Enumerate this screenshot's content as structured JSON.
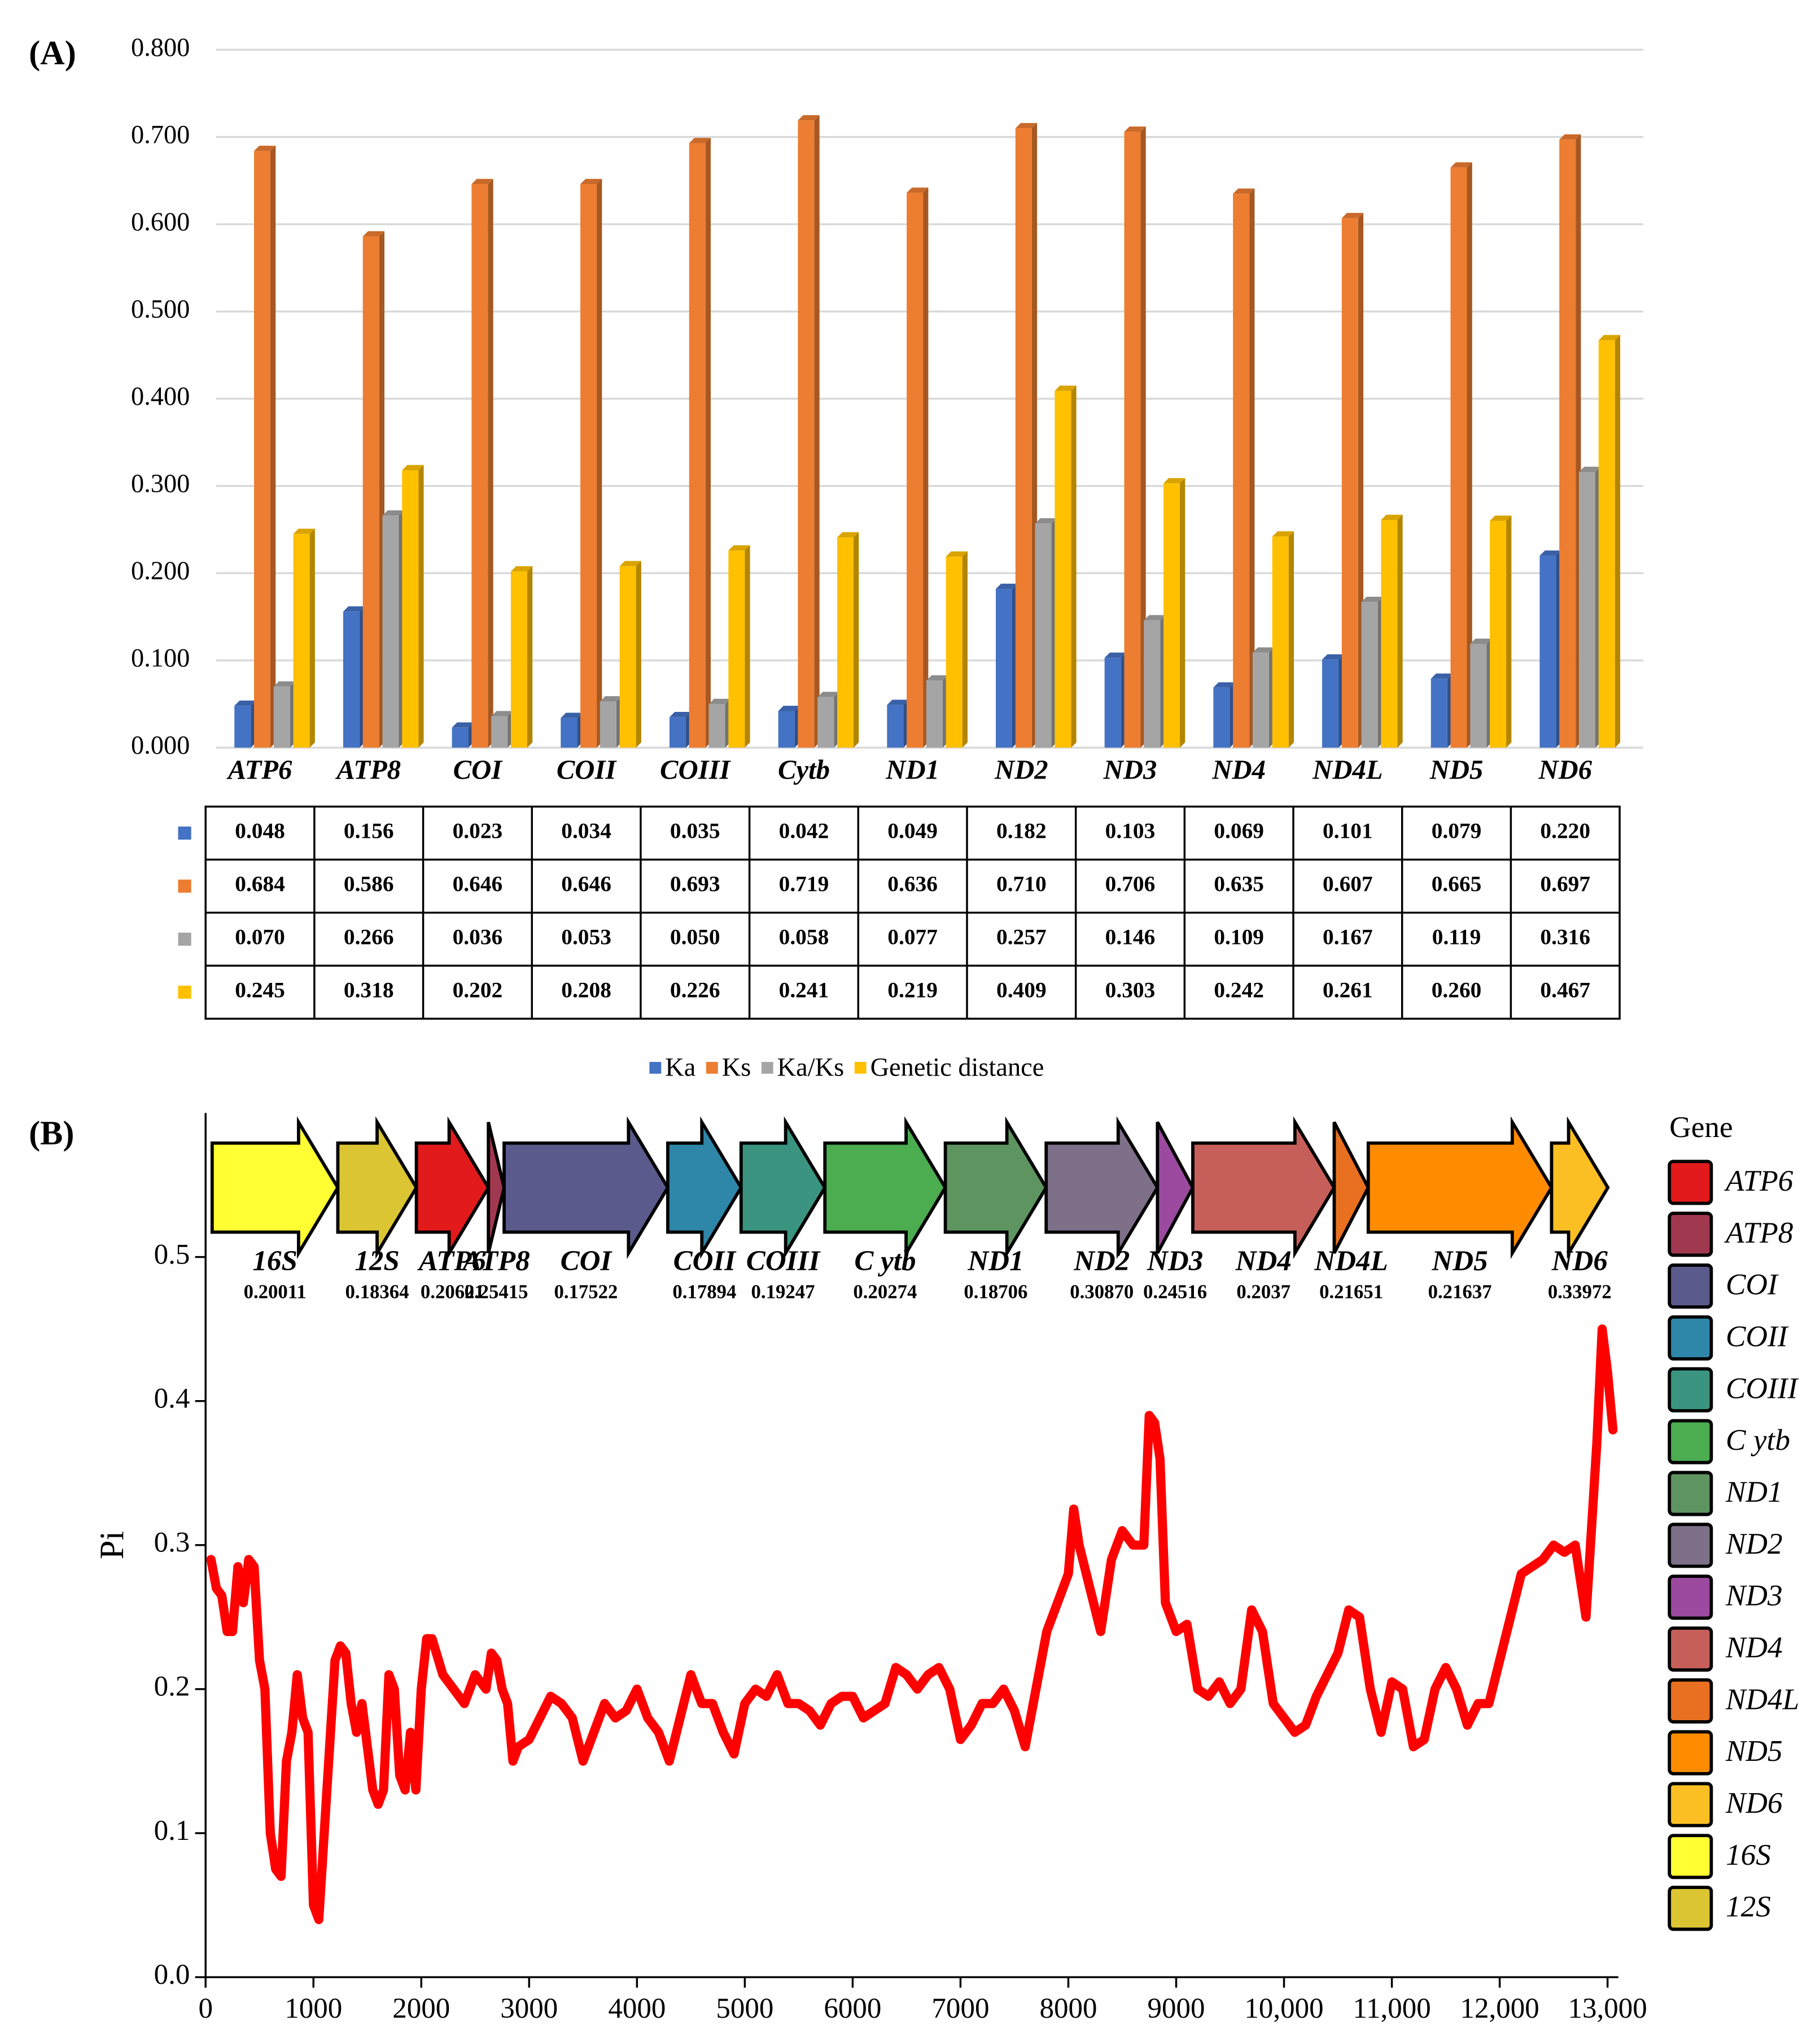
{
  "chart_data": [
    {
      "type": "bar",
      "panel": "(A)",
      "categories": [
        "ATP6",
        "ATP8",
        "COI",
        "COII",
        "COIII",
        "Cytb",
        "ND1",
        "ND2",
        "ND3",
        "ND4",
        "ND4L",
        "ND5",
        "ND6"
      ],
      "series": [
        {
          "name": "Ka",
          "color": "#4472c4",
          "values": [
            0.048,
            0.156,
            0.023,
            0.034,
            0.035,
            0.042,
            0.049,
            0.182,
            0.103,
            0.069,
            0.101,
            0.079,
            0.22
          ],
          "value_labels": [
            "0.048",
            "0.156",
            "0.023",
            "0.034",
            "0.035",
            "0.042",
            "0.049",
            "0.182",
            "0.103",
            "0.069",
            "0.101",
            "0.079",
            "0.220"
          ]
        },
        {
          "name": "Ks",
          "color": "#ed7d31",
          "values": [
            0.684,
            0.586,
            0.646,
            0.646,
            0.693,
            0.719,
            0.636,
            0.71,
            0.706,
            0.635,
            0.607,
            0.665,
            0.697
          ],
          "value_labels": [
            "0.684",
            "0.586",
            "0.646",
            "0.646",
            "0.693",
            "0.719",
            "0.636",
            "0.710",
            "0.706",
            "0.635",
            "0.607",
            "0.665",
            "0.697"
          ]
        },
        {
          "name": "Ka/Ks",
          "color": "#a5a5a5",
          "values": [
            0.07,
            0.266,
            0.036,
            0.053,
            0.05,
            0.058,
            0.077,
            0.257,
            0.146,
            0.109,
            0.167,
            0.119,
            0.316
          ],
          "value_labels": [
            "0.070",
            "0.266",
            "0.036",
            "0.053",
            "0.050",
            "0.058",
            "0.077",
            "0.257",
            "0.146",
            "0.109",
            "0.167",
            "0.119",
            "0.316"
          ]
        },
        {
          "name": "Genetic distance",
          "color": "#ffc000",
          "values": [
            0.245,
            0.318,
            0.202,
            0.208,
            0.226,
            0.241,
            0.219,
            0.409,
            0.303,
            0.242,
            0.261,
            0.26,
            0.467
          ],
          "value_labels": [
            "0.245",
            "0.318",
            "0.202",
            "0.208",
            "0.226",
            "0.241",
            "0.219",
            "0.409",
            "0.303",
            "0.242",
            "0.261",
            "0.260",
            "0.467"
          ]
        }
      ],
      "ylim": [
        0,
        0.8
      ],
      "yticks": [
        {
          "value": 0,
          "label": "0.000"
        },
        {
          "value": 0.1,
          "label": "0.100"
        },
        {
          "value": 0.2,
          "label": "0.200"
        },
        {
          "value": 0.3,
          "label": "0.300"
        },
        {
          "value": 0.4,
          "label": "0.400"
        },
        {
          "value": 0.5,
          "label": "0.500"
        },
        {
          "value": 0.6,
          "label": "0.600"
        },
        {
          "value": 0.7,
          "label": "0.700"
        },
        {
          "value": 0.8,
          "label": "0.800"
        }
      ],
      "grid": true,
      "legend": "bottom"
    },
    {
      "type": "line",
      "panel": "(B)",
      "ylabel": "Pi",
      "color": "#ff0000",
      "x": [
        50,
        100,
        150,
        200,
        250,
        300,
        350,
        400,
        450,
        500,
        550,
        600,
        650,
        700,
        750,
        800,
        850,
        900,
        950,
        1000,
        1050,
        1100,
        1150,
        1200,
        1250,
        1300,
        1350,
        1400,
        1450,
        1500,
        1550,
        1600,
        1650,
        1700,
        1750,
        1800,
        1850,
        1900,
        1950,
        2000,
        2050,
        2100,
        2200,
        2300,
        2400,
        2500,
        2600,
        2650,
        2700,
        2750,
        2800,
        2850,
        2900,
        3000,
        3100,
        3200,
        3300,
        3400,
        3500,
        3600,
        3700,
        3800,
        3900,
        4000,
        4100,
        4200,
        4300,
        4400,
        4500,
        4600,
        4700,
        4800,
        4900,
        5000,
        5100,
        5200,
        5300,
        5400,
        5500,
        5600,
        5700,
        5800,
        5900,
        6000,
        6100,
        6200,
        6300,
        6400,
        6500,
        6600,
        6700,
        6800,
        6900,
        7000,
        7100,
        7200,
        7300,
        7400,
        7500,
        7600,
        7700,
        7800,
        7900,
        8000,
        8050,
        8100,
        8200,
        8300,
        8400,
        8500,
        8600,
        8700,
        8750,
        8800,
        8850,
        8900,
        9000,
        9100,
        9200,
        9300,
        9400,
        9500,
        9600,
        9700,
        9800,
        9900,
        10000,
        10100,
        10200,
        10300,
        10400,
        10500,
        10600,
        10700,
        10800,
        10900,
        11000,
        11100,
        11200,
        11300,
        11400,
        11500,
        11600,
        11700,
        11800,
        11900,
        12000,
        12100,
        12200,
        12300,
        12400,
        12500,
        12600,
        12700,
        12800,
        12850,
        12900,
        12950,
        13000,
        13050
      ],
      "values": [
        0.29,
        0.27,
        0.265,
        0.24,
        0.24,
        0.285,
        0.26,
        0.29,
        0.285,
        0.22,
        0.2,
        0.1,
        0.075,
        0.07,
        0.15,
        0.17,
        0.21,
        0.18,
        0.17,
        0.05,
        0.04,
        0.1,
        0.16,
        0.22,
        0.23,
        0.225,
        0.19,
        0.17,
        0.19,
        0.16,
        0.13,
        0.12,
        0.13,
        0.21,
        0.2,
        0.14,
        0.13,
        0.17,
        0.13,
        0.2,
        0.235,
        0.235,
        0.21,
        0.2,
        0.19,
        0.21,
        0.2,
        0.225,
        0.22,
        0.2,
        0.19,
        0.15,
        0.16,
        0.165,
        0.18,
        0.195,
        0.19,
        0.18,
        0.15,
        0.17,
        0.19,
        0.18,
        0.185,
        0.2,
        0.18,
        0.17,
        0.15,
        0.18,
        0.21,
        0.19,
        0.19,
        0.17,
        0.155,
        0.19,
        0.2,
        0.195,
        0.21,
        0.19,
        0.19,
        0.185,
        0.175,
        0.19,
        0.195,
        0.195,
        0.18,
        0.185,
        0.19,
        0.215,
        0.21,
        0.2,
        0.21,
        0.215,
        0.2,
        0.165,
        0.175,
        0.19,
        0.19,
        0.2,
        0.185,
        0.16,
        0.2,
        0.24,
        0.26,
        0.28,
        0.325,
        0.3,
        0.27,
        0.24,
        0.29,
        0.31,
        0.3,
        0.3,
        0.39,
        0.385,
        0.36,
        0.26,
        0.24,
        0.245,
        0.2,
        0.195,
        0.205,
        0.19,
        0.2,
        0.255,
        0.24,
        0.19,
        0.18,
        0.17,
        0.175,
        0.195,
        0.21,
        0.225,
        0.255,
        0.25,
        0.2,
        0.17,
        0.205,
        0.2,
        0.16,
        0.165,
        0.2,
        0.215,
        0.2,
        0.175,
        0.19,
        0.19,
        0.22,
        0.25,
        0.28,
        0.285,
        0.29,
        0.3,
        0.295,
        0.3,
        0.25,
        0.31,
        0.37,
        0.45,
        0.42,
        0.38
      ],
      "xlim": [
        0,
        13100
      ],
      "xticks": [
        0,
        1000,
        2000,
        3000,
        4000,
        5000,
        6000,
        7000,
        8000,
        9000,
        {
          "value": 10000,
          "label": "10,000"
        },
        {
          "value": 11000,
          "label": "11,000"
        },
        {
          "value": 12000,
          "label": "12,000"
        },
        {
          "value": 13000,
          "label": "13,000"
        }
      ],
      "ylim": [
        0,
        0.6
      ],
      "yticks": [
        {
          "value": 0,
          "label": "0.0"
        },
        0.1,
        0.2,
        0.3,
        0.4,
        0.5
      ],
      "genes": [
        {
          "name": "16S",
          "pi": 0.20011,
          "color": "#ffff33"
        },
        {
          "name": "12S",
          "pi": 0.18364,
          "color": "#dcc532"
        },
        {
          "name": "ATP6",
          "pi": 0.20621,
          "color": "#e31a1c"
        },
        {
          "name": "ATP8",
          "pi": 0.25415,
          "color": "#a0384f"
        },
        {
          "name": "COI",
          "pi": 0.17522,
          "color": "#5a5a8c"
        },
        {
          "name": "COII",
          "pi": 0.17894,
          "color": "#2e86a8"
        },
        {
          "name": "COIII",
          "pi": 0.19247,
          "color": "#3a9480"
        },
        {
          "name": "C ytb",
          "pi": 0.20274,
          "color": "#4bac50"
        },
        {
          "name": "ND1",
          "pi": 0.18706,
          "color": "#5e9460"
        },
        {
          "name": "ND2",
          "pi": {
            "value": 0.3087,
            "label": "0.30870"
          },
          "color": "#7e7088"
        },
        {
          "name": "ND3",
          "pi": 0.24516,
          "color": "#9b4aa0"
        },
        {
          "name": "ND4",
          "pi": 0.2037,
          "color": "#c65f5a"
        },
        {
          "name": "ND4L",
          "pi": 0.21651,
          "color": "#e87020"
        },
        {
          "name": "ND5",
          "pi": 0.21637,
          "color": "#ff8c00"
        },
        {
          "name": "ND6",
          "pi": 0.33972,
          "color": "#fbbf24"
        }
      ],
      "legend_title": "Gene"
    }
  ]
}
